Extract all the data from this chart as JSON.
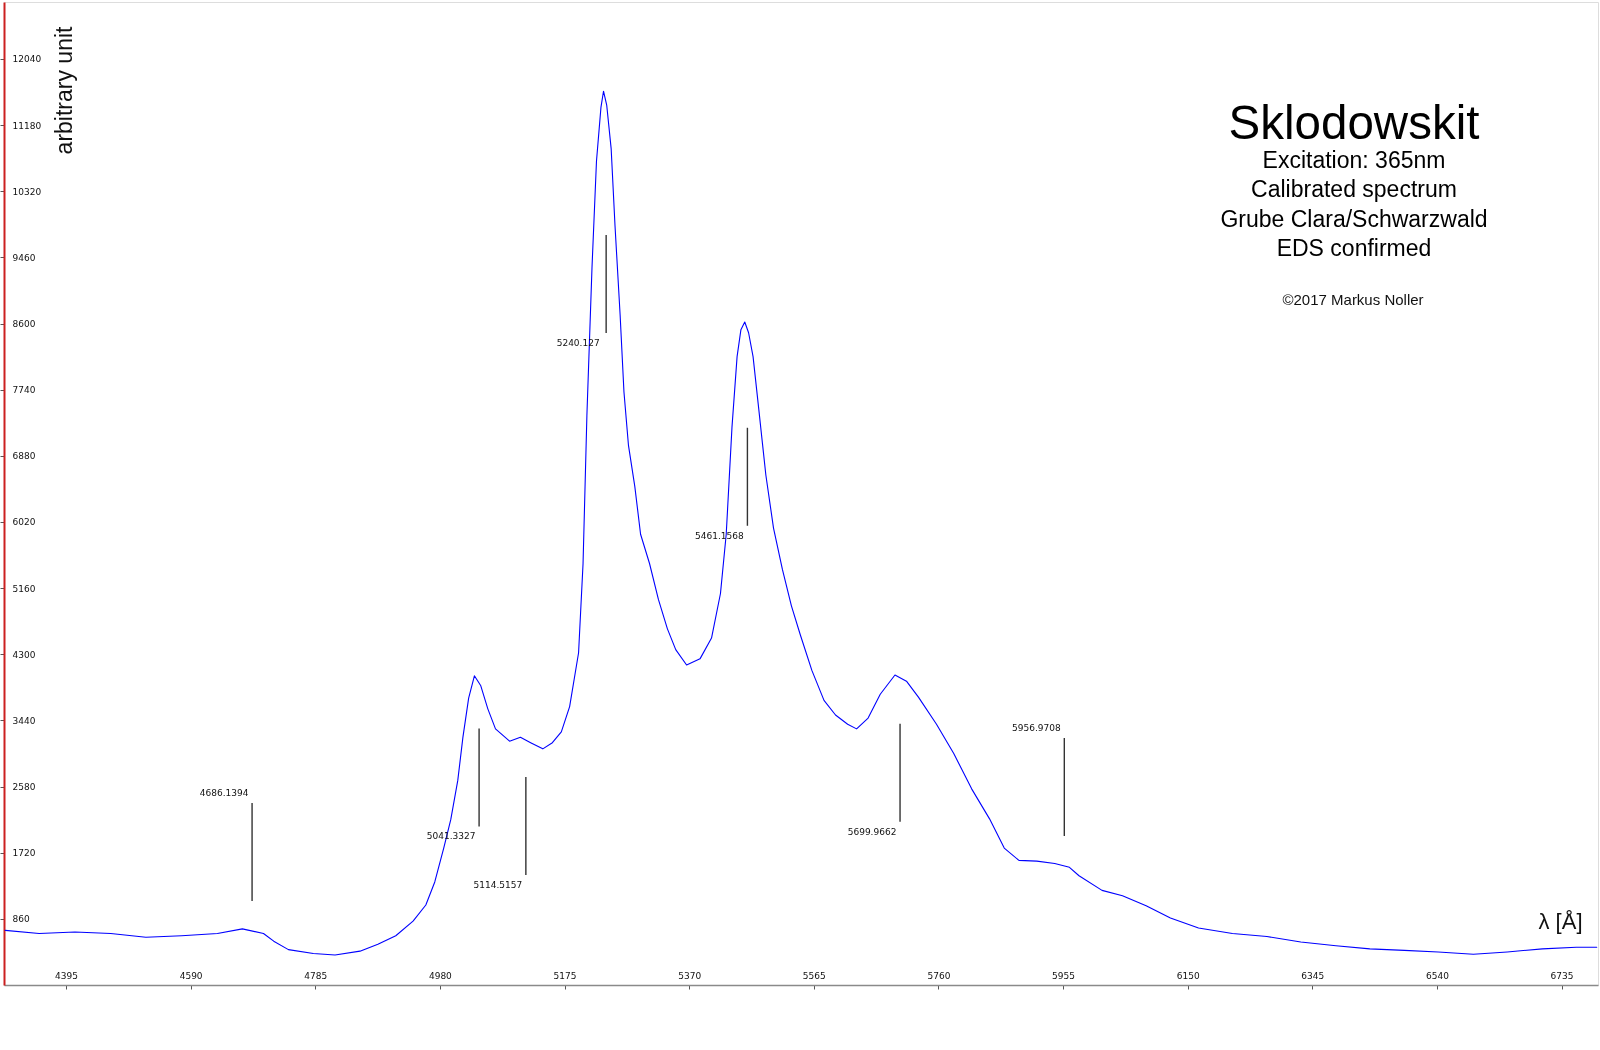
{
  "chart_data": {
    "type": "line",
    "title": "Sklodowskit",
    "subtitle": "Excitation: 365nm\nCalibrated spectrum\nGrube Clara/Schwarzwald\nEDS confirmed",
    "xlabel": "λ [Å]",
    "ylabel": "arbitrary unit",
    "annotations": [
      "©2017 Markus Noller"
    ],
    "x": [
      4300,
      4353,
      4409,
      4465,
      4520,
      4576,
      4632,
      4671,
      4704,
      4720,
      4743,
      4782,
      4816,
      4855,
      4883,
      4911,
      4938,
      4958,
      4972,
      4986,
      4997,
      5008,
      5016,
      5025,
      5034,
      5044,
      5055,
      5067,
      5089,
      5106,
      5122,
      5141,
      5156,
      5170,
      5183,
      5197,
      5204,
      5210,
      5218,
      5225,
      5232,
      5236,
      5241,
      5248,
      5254,
      5262,
      5268,
      5275,
      5285,
      5294,
      5308,
      5322,
      5336,
      5349,
      5366,
      5387,
      5405,
      5419,
      5428,
      5437,
      5445,
      5451,
      5457,
      5463,
      5470,
      5479,
      5490,
      5502,
      5516,
      5530,
      5544,
      5562,
      5581,
      5599,
      5618,
      5632,
      5650,
      5669,
      5692,
      5710,
      5729,
      5757,
      5784,
      5812,
      5840,
      5863,
      5886,
      5914,
      5942,
      5965,
      5980,
      6016,
      6048,
      6085,
      6123,
      6167,
      6220,
      6274,
      6327,
      6382,
      6435,
      6489,
      6542,
      6597,
      6650,
      6705,
      6758,
      6790
    ],
    "series": [
      {
        "color": "#0000ff",
        "values": [
          710,
          670,
          690,
          670,
          620,
          640,
          670,
          730,
          670,
          570,
          460,
          410,
          390,
          440,
          530,
          640,
          830,
          1040,
          1340,
          1780,
          2150,
          2660,
          3220,
          3730,
          4020,
          3890,
          3590,
          3330,
          3170,
          3220,
          3150,
          3070,
          3150,
          3290,
          3620,
          4320,
          5480,
          7400,
          9330,
          10710,
          11410,
          11620,
          11440,
          10870,
          9870,
          8710,
          7710,
          7020,
          6480,
          5860,
          5480,
          5010,
          4630,
          4360,
          4160,
          4240,
          4510,
          5090,
          5860,
          7250,
          8170,
          8520,
          8620,
          8480,
          8170,
          7480,
          6630,
          5940,
          5400,
          4930,
          4550,
          4090,
          3700,
          3510,
          3390,
          3330,
          3470,
          3780,
          4030,
          3950,
          3740,
          3390,
          3010,
          2550,
          2160,
          1780,
          1620,
          1610,
          1580,
          1530,
          1420,
          1230,
          1160,
          1030,
          870,
          740,
          670,
          630,
          560,
          510,
          470,
          450,
          430,
          400,
          430,
          470,
          490,
          490
        ]
      }
    ],
    "xlim": [
      4298,
      6792
    ],
    "ylim": [
      0,
      12780
    ],
    "xticks": [
      4395,
      4590,
      4785,
      4980,
      5175,
      5370,
      5565,
      5760,
      5955,
      6150,
      6345,
      6540,
      6735
    ],
    "yticks": [
      860,
      1720,
      2580,
      3440,
      4300,
      5160,
      6020,
      6880,
      7740,
      8600,
      9460,
      10320,
      11180,
      12040
    ],
    "ref_lines": [
      {
        "axis": "x",
        "value": 4686.1394,
        "label": "4686.1394",
        "color": "#333333"
      },
      {
        "axis": "x",
        "value": 5041.3327,
        "label": "5041.3327",
        "color": "#333333"
      },
      {
        "axis": "x",
        "value": 5114.5157,
        "label": "5114.5157",
        "color": "#333333"
      },
      {
        "axis": "x",
        "value": 5240.127,
        "label": "5240.127",
        "color": "#333333"
      },
      {
        "axis": "x",
        "value": 5461.1568,
        "label": "5461.1568",
        "color": "#333333"
      },
      {
        "axis": "x",
        "value": 5699.9662,
        "label": "5699.9662",
        "color": "#333333"
      },
      {
        "axis": "x",
        "value": 5956.9708,
        "label": "5956.9708",
        "color": "#333333"
      }
    ],
    "grid": false,
    "marker": "none",
    "line_style": "solid"
  }
}
